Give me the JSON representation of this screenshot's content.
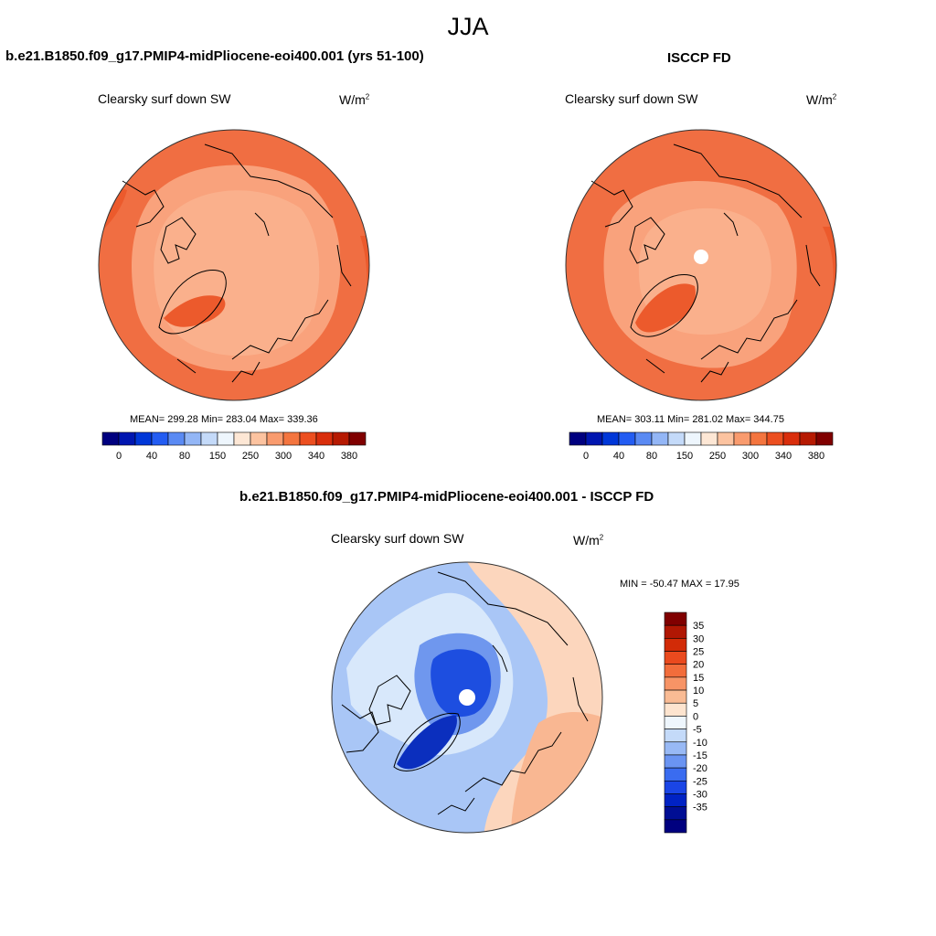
{
  "figure": {
    "season": "JJA",
    "field_label": "Clearsky surf down SW",
    "units_base": "W/m",
    "units_exp": "2"
  },
  "panels": {
    "model": {
      "title": "b.e21.B1850.f09_g17.PMIP4-midPliocene-eoi400.001 (yrs 51-100)",
      "stats": "MEAN= 299.28  Min= 283.04  Max= 339.36",
      "mean": 299.28,
      "min": 283.04,
      "max": 339.36
    },
    "obs": {
      "title": "ISCCP FD",
      "stats": "MEAN= 303.11  Min= 281.02  Max= 344.75",
      "mean": 303.11,
      "min": 281.02,
      "max": 344.75
    },
    "diff": {
      "title": "b.e21.B1850.f09_g17.PMIP4-midPliocene-eoi400.001 - ISCCP FD",
      "stats": "MIN = -50.47 MAX =  17.95",
      "min": -50.47,
      "max": 17.95
    }
  },
  "colorbars": {
    "abs": {
      "colors": [
        "#00007f",
        "#0016b0",
        "#0037d8",
        "#235cf2",
        "#5a8af3",
        "#93b6f6",
        "#c4daf9",
        "#eef6fd",
        "#fde7d5",
        "#fcc3a0",
        "#f99b6e",
        "#f4753f",
        "#ec4f20",
        "#d92e0c",
        "#b61a02",
        "#800000"
      ],
      "tick_labels": [
        "0",
        "40",
        "80",
        "150",
        "250",
        "300",
        "340",
        "380"
      ]
    },
    "diff": {
      "colors": [
        "#800000",
        "#b01703",
        "#d22b07",
        "#ea4a1e",
        "#f26d3b",
        "#f79466",
        "#f9bb94",
        "#fde4cf",
        "#eef6fd",
        "#c4daf9",
        "#98b9f5",
        "#6a94f2",
        "#3a6cf0",
        "#1a45e6",
        "#0022c4",
        "#000e94",
        "#00007f"
      ],
      "tick_labels": [
        "35",
        "30",
        "25",
        "20",
        "15",
        "10",
        "5",
        "0",
        "-5",
        "-10",
        "-15",
        "-20",
        "-25",
        "-30",
        "-35"
      ]
    }
  },
  "map_colors": {
    "outer": "#f06e42",
    "mid": "#f9a27c",
    "inner": "#fab08c",
    "hot": "#ec5a2c",
    "diff_base": "#a9c6f6",
    "diff_light": "#d8e8fb",
    "diff_mid": "#6f97ee",
    "diff_dark": "#1d4ee0",
    "diff_darkest": "#0b2fbe",
    "diff_warm": "#fcd6bd",
    "diff_warmer": "#f9b792",
    "hole": "#ffffff",
    "coast": "#000000"
  }
}
